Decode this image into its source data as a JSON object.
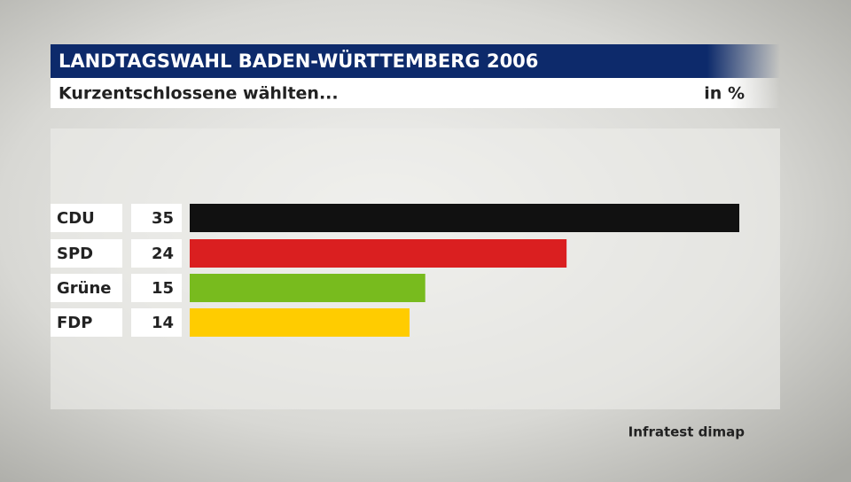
{
  "chart_data": {
    "type": "bar",
    "orientation": "horizontal",
    "title": "LANDTAGSWAHL BADEN-WÜRTTEMBERG 2006",
    "subtitle": "Kurzentschlossene wählten...",
    "unit": "in %",
    "source": "Infratest dimap",
    "categories": [
      "CDU",
      "SPD",
      "Grüne",
      "FDP"
    ],
    "values": [
      35,
      24,
      15,
      14
    ],
    "colors": [
      "#111111",
      "#da1f20",
      "#78bb1e",
      "#ffcc00"
    ]
  }
}
